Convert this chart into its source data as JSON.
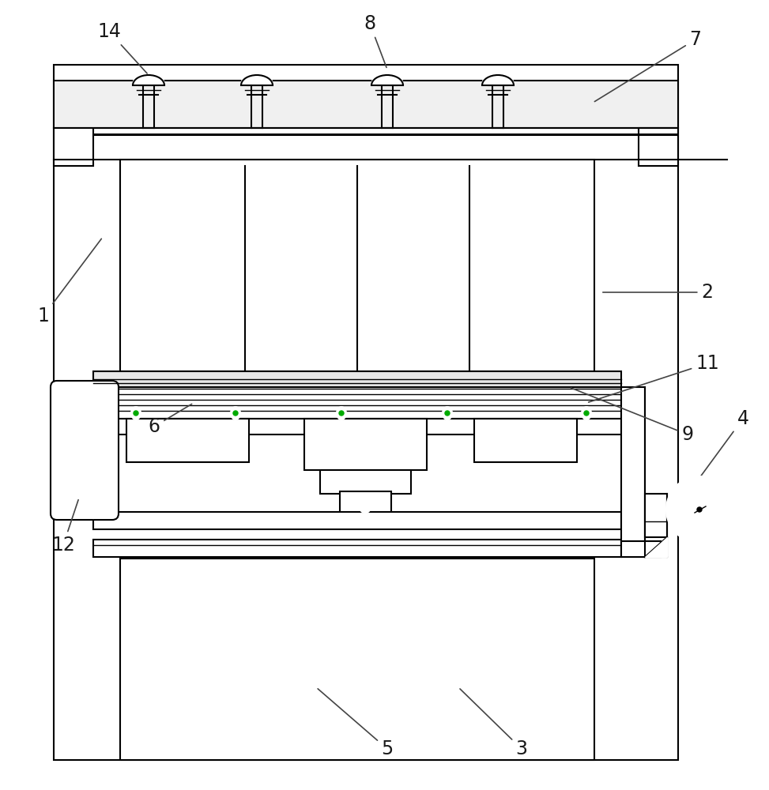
{
  "bg_color": "#ffffff",
  "lc": "#000000",
  "figure_width": 9.73,
  "figure_height": 10.0,
  "lw_thin": 1.0,
  "lw_med": 1.5,
  "lw_thick": 2.2
}
